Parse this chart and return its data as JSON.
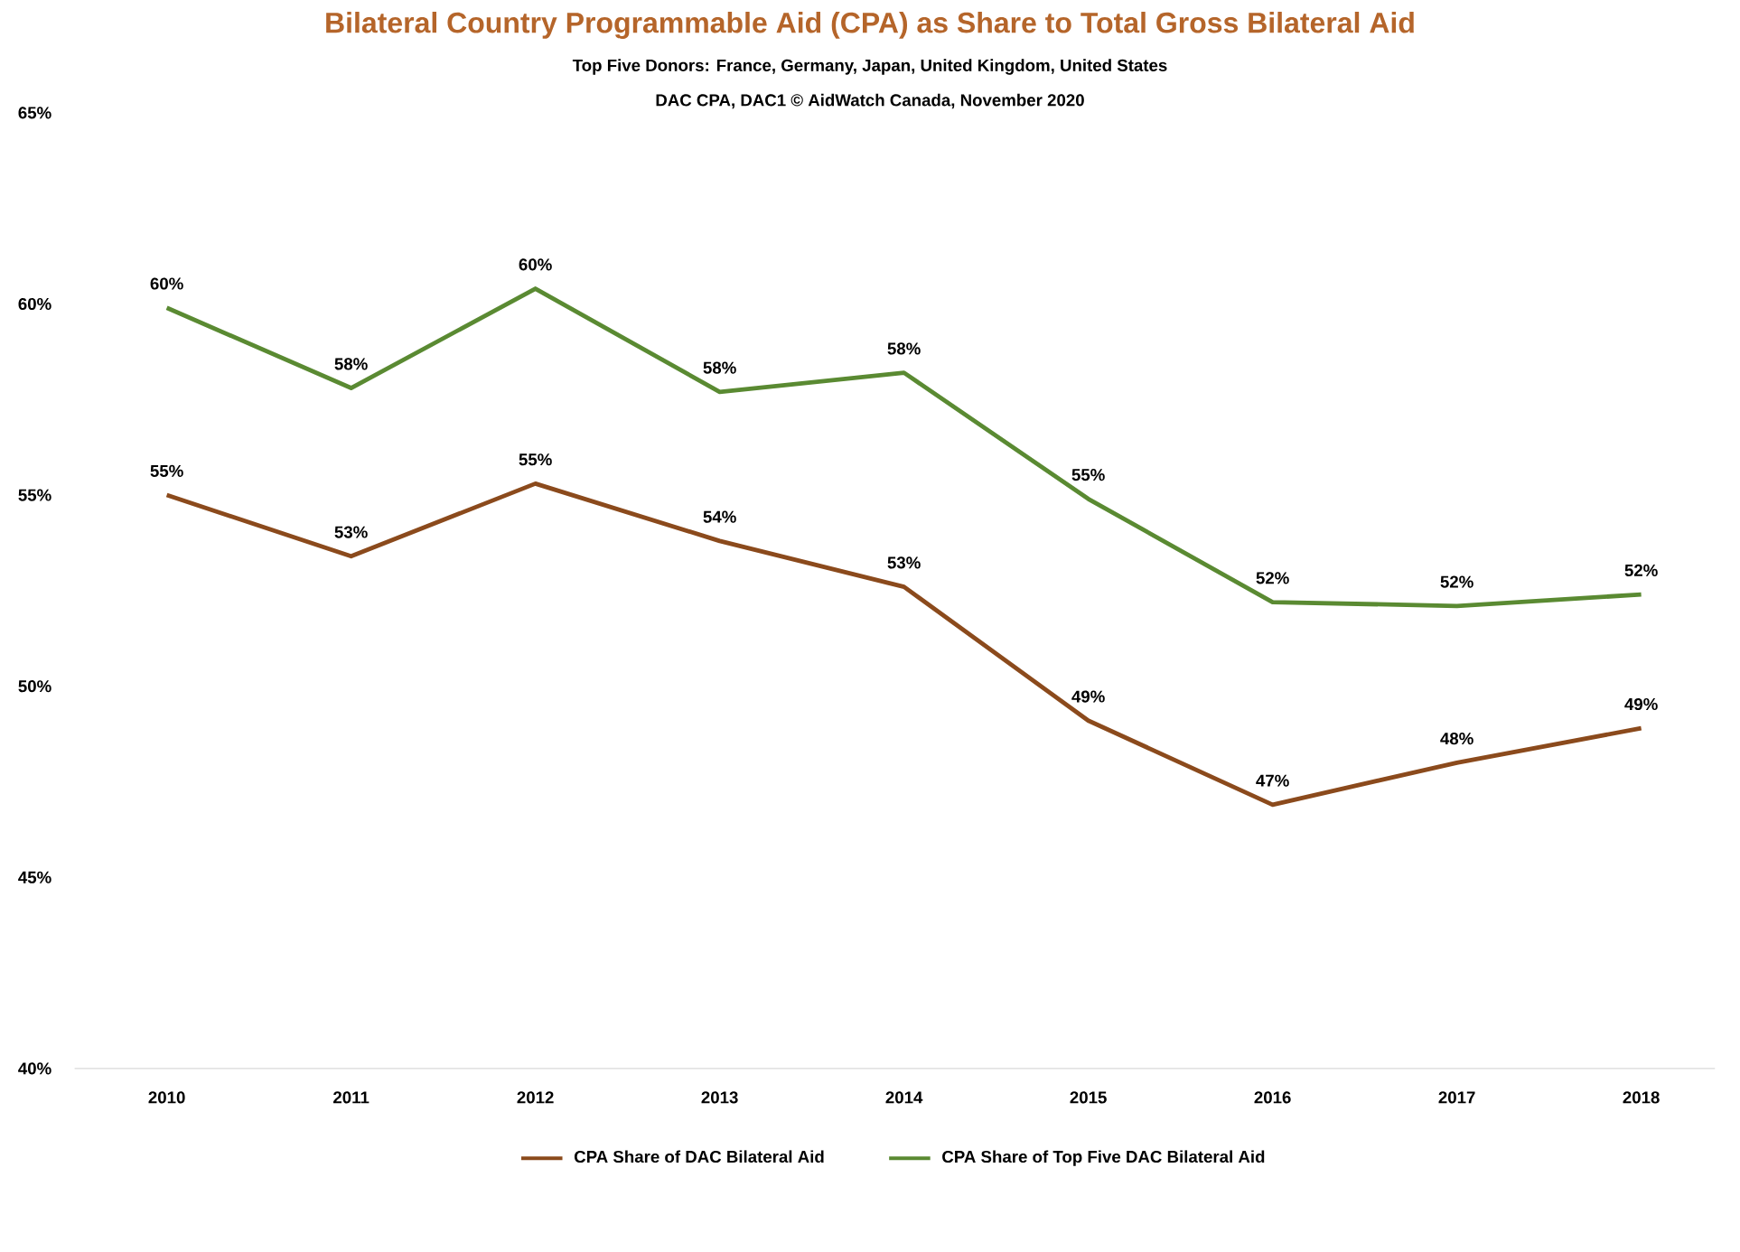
{
  "chart_data": {
    "type": "line",
    "title": "Bilateral Country Programmable Aid (CPA) as Share to Total Gross Bilateral Aid",
    "subtitle": "Top Five Donors: France, Germany, Japan, United Kingdom, United States",
    "annotations": [
      "DAC CPA,  DAC1    © AidWatch Canada, November 2020"
    ],
    "categories": [
      "2010",
      "2011",
      "2012",
      "2013",
      "2014",
      "2015",
      "2016",
      "2017",
      "2018"
    ],
    "series": [
      {
        "name": "CPA Share of DAC Bilateral Aid",
        "color": "#8b4a1c",
        "values": [
          55.0,
          53.4,
          55.3,
          53.8,
          52.6,
          49.1,
          46.9,
          48.0,
          48.9
        ],
        "value_labels": [
          "55%",
          "53%",
          "55%",
          "54%",
          "53%",
          "49%",
          "47%",
          "48%",
          "49%"
        ]
      },
      {
        "name": "CPA Share of Top Five DAC Bilateral Aid",
        "color": "#5a8a32",
        "values": [
          59.9,
          57.8,
          60.4,
          57.7,
          58.2,
          54.9,
          52.2,
          52.1,
          52.4
        ],
        "value_labels": [
          "60%",
          "58%",
          "60%",
          "58%",
          "58%",
          "55%",
          "52%",
          "52%",
          "52%"
        ]
      }
    ],
    "ylim": [
      40,
      65
    ],
    "yticks": [
      {
        "value": 40,
        "label": "40%"
      },
      {
        "value": 45,
        "label": "45%"
      },
      {
        "value": 50,
        "label": "50%"
      },
      {
        "value": 55,
        "label": "55%"
      },
      {
        "value": 60,
        "label": "60%"
      },
      {
        "value": 65,
        "label": "65%"
      }
    ],
    "legend": "bottom",
    "marker": "none"
  }
}
